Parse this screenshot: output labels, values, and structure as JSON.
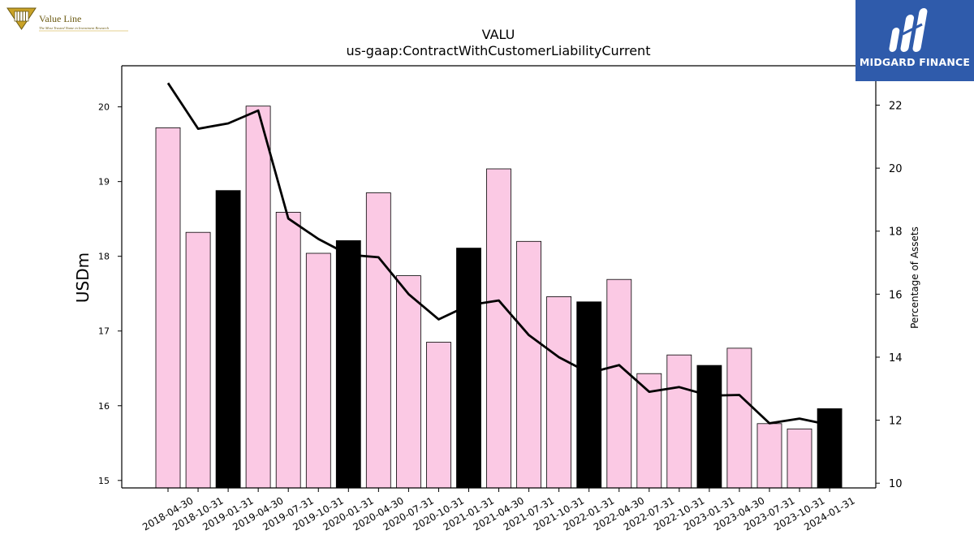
{
  "logos": {
    "valueline": {
      "name": "Value Line",
      "tagline": "The Most Trusted Name in Investment Research"
    },
    "midgard": {
      "name": "MIDGARD FINANCE"
    }
  },
  "colors": {
    "bar_default": "#fbc9e4",
    "bar_highlight": "#000000",
    "line": "#000000",
    "brand_blue": "#2f5bab",
    "valueline_gold": "#c9a227"
  },
  "chart_data": {
    "type": "bar",
    "title": "VALU",
    "subtitle": "us-gaap:ContractWithCustomerLiabilityCurrent",
    "ylabel": "USDm",
    "y2label": "Percentage of Assets",
    "categories": [
      "2018-04-30",
      "2018-10-31",
      "2019-01-31",
      "2019-04-30",
      "2019-07-31",
      "2019-10-31",
      "2020-01-31",
      "2020-04-30",
      "2020-07-31",
      "2020-10-31",
      "2021-01-31",
      "2021-04-30",
      "2021-07-31",
      "2021-10-31",
      "2022-01-31",
      "2022-04-30",
      "2022-07-31",
      "2022-10-31",
      "2023-01-31",
      "2023-04-30",
      "2023-07-31",
      "2023-10-31",
      "2024-01-31"
    ],
    "values": [
      19.72,
      18.32,
      18.88,
      20.01,
      18.59,
      18.04,
      18.21,
      18.85,
      17.74,
      16.85,
      18.11,
      19.17,
      18.2,
      17.46,
      17.39,
      17.69,
      16.43,
      16.68,
      16.54,
      16.77,
      15.76,
      15.69,
      15.96
    ],
    "highlight": [
      false,
      false,
      true,
      false,
      false,
      false,
      true,
      false,
      false,
      false,
      true,
      false,
      false,
      false,
      true,
      false,
      false,
      false,
      true,
      false,
      false,
      false,
      true
    ],
    "line_series": {
      "name": "Percentage of Assets",
      "values": [
        22.7,
        21.25,
        21.42,
        21.83,
        18.4,
        17.75,
        17.25,
        17.17,
        16.0,
        15.2,
        15.65,
        15.8,
        14.7,
        14.0,
        13.5,
        13.75,
        12.9,
        13.05,
        12.78,
        12.8,
        11.9,
        12.05,
        11.85
      ]
    },
    "ylim": [
      14.9,
      20.55
    ],
    "y2lim": [
      9.85,
      23.25
    ],
    "yticks": [
      15,
      16,
      17,
      18,
      19,
      20
    ],
    "y2ticks": [
      10,
      12,
      14,
      16,
      18,
      20,
      22
    ],
    "grid": false,
    "legend": "none"
  }
}
